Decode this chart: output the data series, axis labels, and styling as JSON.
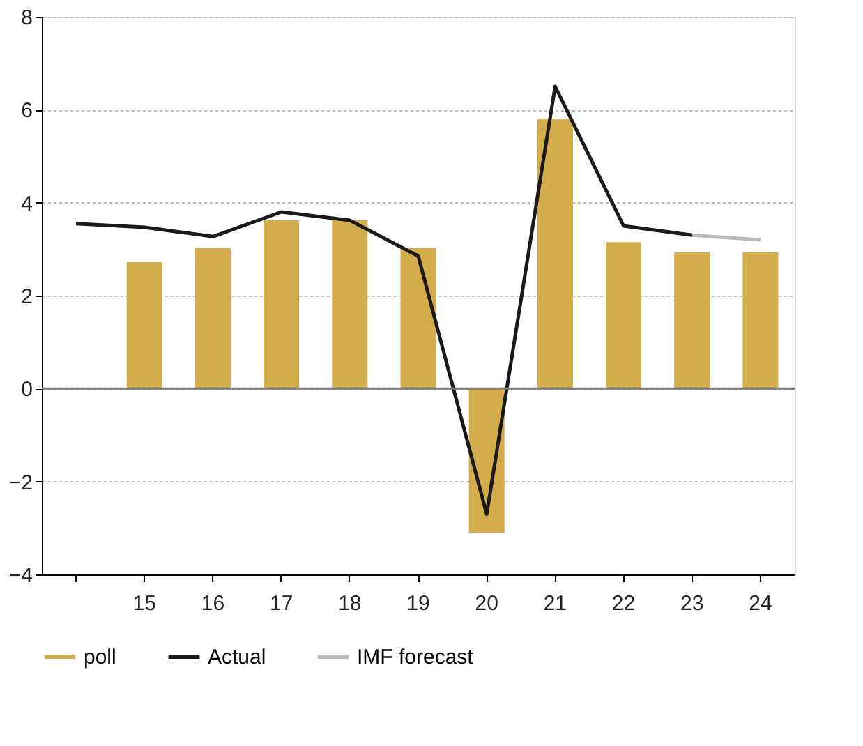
{
  "chart_data": {
    "type": "bar",
    "categories": [
      null,
      "15",
      "16",
      "17",
      "18",
      "19",
      "20",
      "21",
      "22",
      "23",
      "24"
    ],
    "series": [
      {
        "name": "poll",
        "color": "#d3ac4c",
        "values": [
          null,
          2.72,
          3.02,
          3.62,
          3.62,
          3.02,
          -3.1,
          5.8,
          3.15,
          2.93,
          2.93
        ]
      },
      {
        "name": "Actual",
        "type": "line",
        "color": "#1a1a1a",
        "values": [
          3.55,
          3.47,
          3.27,
          3.8,
          3.62,
          2.85,
          -2.7,
          6.5,
          3.5,
          3.3,
          null
        ]
      },
      {
        "name": "IMF forecast",
        "type": "line",
        "color": "#bbbbbb",
        "values": [
          null,
          null,
          null,
          null,
          null,
          null,
          null,
          null,
          null,
          3.3,
          3.2
        ]
      }
    ],
    "ylim": [
      -4,
      8
    ],
    "yticks": [
      -4,
      -2,
      0,
      2,
      4,
      6,
      8
    ],
    "grid": "y",
    "legend": "bottom",
    "marker": "none",
    "line_style": "solid",
    "ref_lines": [
      {
        "axis": "y",
        "value": 0,
        "color": "#777777"
      }
    ]
  }
}
